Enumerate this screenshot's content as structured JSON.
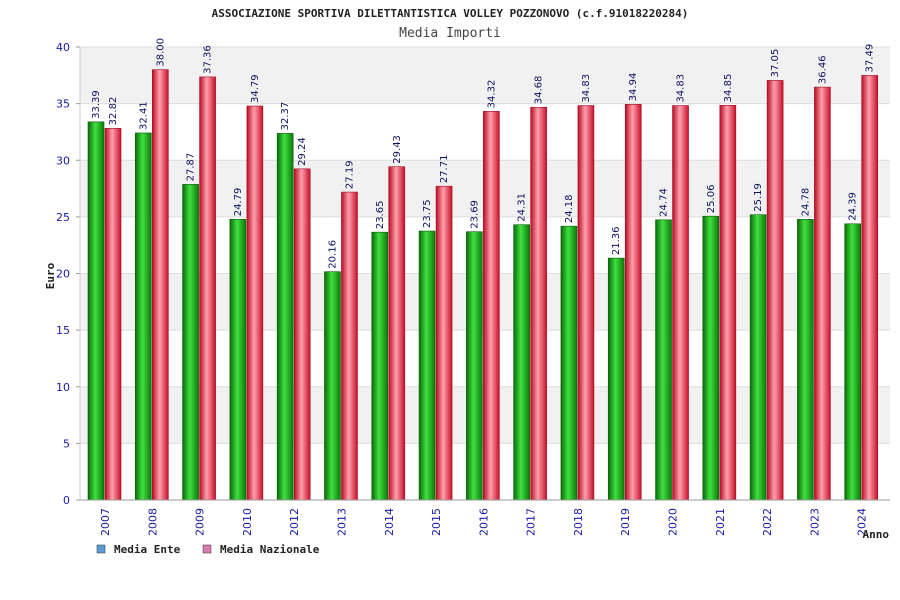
{
  "chart_data": {
    "type": "bar",
    "title": "ASSOCIAZIONE SPORTIVA DILETTANTISTICA VOLLEY POZZONOVO (c.f.91018220284)",
    "subtitle": "Media Importi",
    "xlabel": "Anno",
    "ylabel": "Euro",
    "ylim": [
      0,
      40
    ],
    "yticks": [
      0,
      5,
      10,
      15,
      20,
      25,
      30,
      35,
      40
    ],
    "categories": [
      "2007",
      "2008",
      "2009",
      "2010",
      "2012",
      "2013",
      "2014",
      "2015",
      "2016",
      "2017",
      "2018",
      "2019",
      "2020",
      "2021",
      "2022",
      "2023",
      "2024"
    ],
    "series": [
      {
        "name": "Media Ente",
        "values": [
          33.39,
          32.41,
          27.87,
          24.79,
          32.37,
          20.16,
          23.65,
          23.75,
          23.69,
          24.31,
          24.18,
          21.36,
          24.74,
          25.06,
          25.19,
          24.78,
          24.39
        ],
        "labels": [
          "33.39",
          "32.41",
          "27.87",
          "24.79",
          "32.37",
          "20.16",
          "23.65",
          "23.75",
          "23.69",
          "24.31",
          "24.18",
          "21.36",
          "24.74",
          "25.06",
          "25.19",
          "24.78",
          "24.39"
        ]
      },
      {
        "name": "Media Nazionale",
        "values": [
          32.82,
          38.0,
          37.36,
          34.79,
          29.24,
          27.19,
          29.43,
          27.71,
          34.32,
          34.68,
          34.83,
          34.94,
          34.83,
          34.85,
          37.05,
          36.46,
          37.49
        ],
        "labels": [
          "32.82",
          "38.00",
          "37.36",
          "34.79",
          "29.24",
          "27.19",
          "29.43",
          "27.71",
          "34.32",
          "34.68",
          "34.83",
          "34.94",
          "34.83",
          "34.85",
          "37.05",
          "36.46",
          "37.49"
        ]
      }
    ],
    "grid": true,
    "legend_position": "bottom-left"
  },
  "colors": {
    "ente_dark": "#0a7a0a",
    "ente_light": "#3ddc3d",
    "naz_dark": "#c0102a",
    "naz_light": "#ff9aa8",
    "legend_ente": "#5b9bd5",
    "legend_naz": "#d97bb0",
    "band": "#f1f1f1"
  }
}
